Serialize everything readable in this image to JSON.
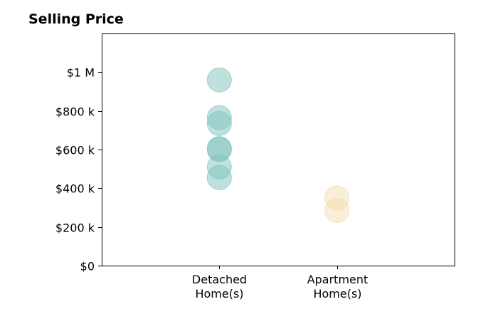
{
  "chart_data": {
    "type": "scatter",
    "title": "Selling Price",
    "xlabel": "",
    "ylabel": "",
    "categories": [
      "Detached\nHome(s)",
      "Apartment\nHome(s)"
    ],
    "xlim": [
      0,
      3
    ],
    "ylim": [
      0,
      1200000
    ],
    "yticks": [
      0,
      200000,
      400000,
      600000,
      800000,
      1000000
    ],
    "ytick_labels": [
      "$0",
      "$200 k",
      "$400 k",
      "$600 k",
      "$800 k",
      "$1 M"
    ],
    "grid": false,
    "series": [
      {
        "category_index": 1,
        "color": "#7fc4bb",
        "values": [
          960000,
          765000,
          735000,
          605000,
          600000,
          510000,
          455000
        ]
      },
      {
        "category_index": 2,
        "color": "#f3ddb0",
        "values": [
          350000,
          285000
        ]
      }
    ]
  }
}
